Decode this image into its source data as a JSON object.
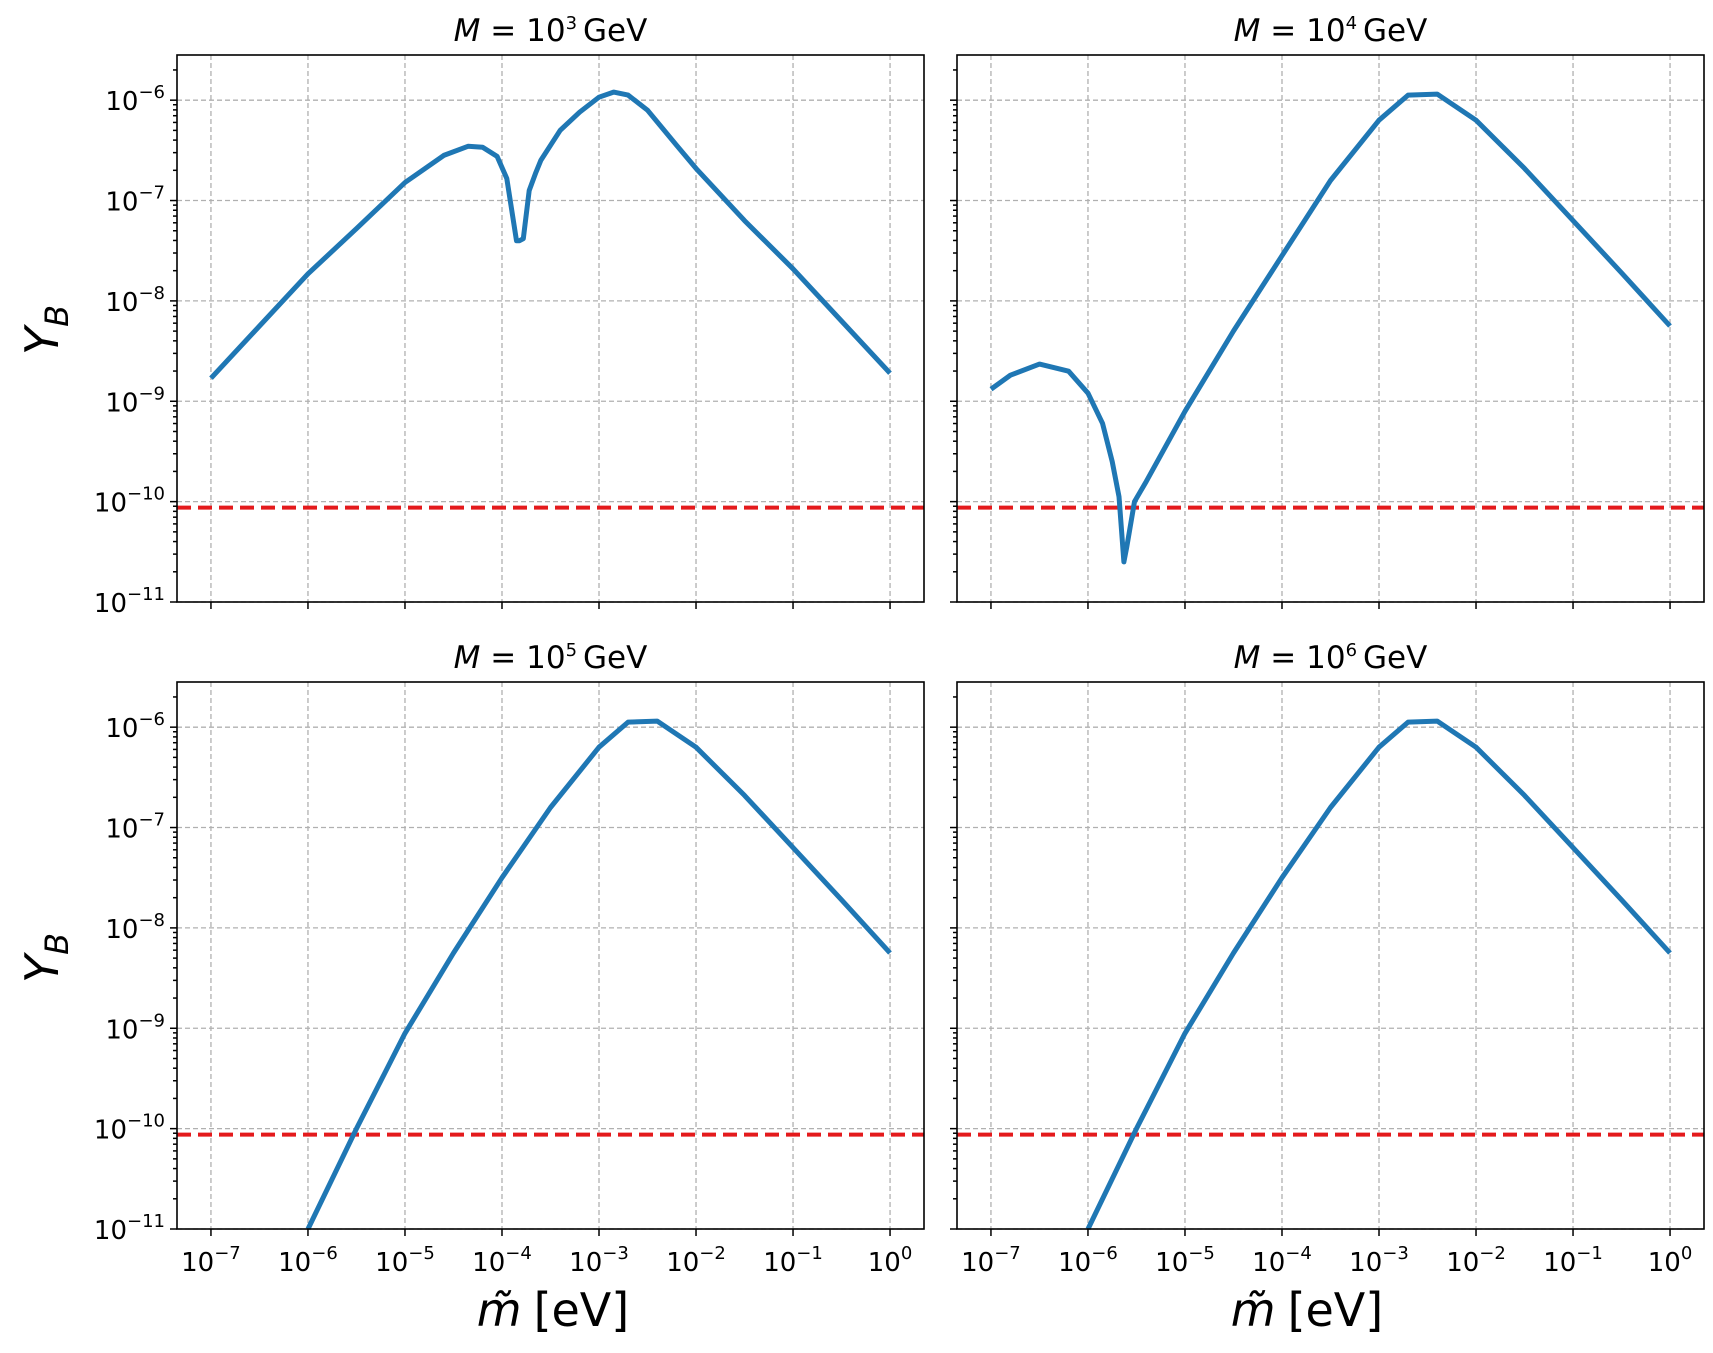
{
  "chart_data": [
    {
      "type": "line",
      "title": "M = 10^3 GeV",
      "title_prefix": "M",
      "title_exp": "3",
      "ylabel": "Y_B",
      "xlabel": "m̃ [eV]",
      "xscale": "log",
      "yscale": "log",
      "xlim_exp": [
        -7.35,
        0.35
      ],
      "ylim_exp": [
        -11,
        -5.55
      ],
      "x_ticks_exp": [
        -7,
        -6,
        -5,
        -4,
        -3,
        -2,
        -1,
        0
      ],
      "y_ticks_exp": [
        -11,
        -10,
        -9,
        -8,
        -7,
        -6
      ],
      "reference_line_exp": -10.06,
      "series": [
        {
          "name": "Y_B",
          "color": "#1f77b4",
          "x_exp": [
            -7.0,
            -6.5,
            -6.0,
            -5.5,
            -5.0,
            -4.6,
            -4.35,
            -4.2,
            -4.05,
            -3.95,
            -3.85,
            -3.82,
            -3.78,
            -3.72,
            -3.65,
            -3.6,
            -3.5,
            -3.4,
            -3.2,
            -3.0,
            -2.85,
            -2.7,
            -2.5,
            -2.2,
            -2.0,
            -1.5,
            -1.0,
            -0.5,
            0.0
          ],
          "y_exp": [
            -8.77,
            -8.25,
            -7.73,
            -7.28,
            -6.82,
            -6.55,
            -6.46,
            -6.47,
            -6.56,
            -6.78,
            -7.4,
            -7.4,
            -7.38,
            -6.9,
            -6.72,
            -6.6,
            -6.45,
            -6.3,
            -6.12,
            -5.97,
            -5.92,
            -5.95,
            -6.1,
            -6.45,
            -6.68,
            -7.2,
            -7.68,
            -8.2,
            -8.72
          ]
        }
      ]
    },
    {
      "type": "line",
      "title": "M = 10^4 GeV",
      "title_prefix": "M",
      "title_exp": "4",
      "ylabel": "Y_B",
      "xlabel": "m̃ [eV]",
      "xscale": "log",
      "yscale": "log",
      "xlim_exp": [
        -7.35,
        0.35
      ],
      "ylim_exp": [
        -11,
        -5.55
      ],
      "x_ticks_exp": [
        -7,
        -6,
        -5,
        -4,
        -3,
        -2,
        -1,
        0
      ],
      "y_ticks_exp": [
        -11,
        -10,
        -9,
        -8,
        -7,
        -6
      ],
      "reference_line_exp": -10.06,
      "series": [
        {
          "name": "Y_B",
          "color": "#1f77b4",
          "x_exp": [
            -7.0,
            -6.8,
            -6.5,
            -6.2,
            -6.0,
            -5.85,
            -5.75,
            -5.68,
            -5.63,
            -5.6,
            -5.52,
            -5.4,
            -5.2,
            -5.0,
            -4.5,
            -4.0,
            -3.5,
            -3.0,
            -2.7,
            -2.4,
            -2.0,
            -1.5,
            -1.0,
            -0.5,
            0.0
          ],
          "y_exp": [
            -8.88,
            -8.74,
            -8.63,
            -8.7,
            -8.92,
            -9.22,
            -9.6,
            -9.95,
            -10.6,
            -10.45,
            -10.0,
            -9.8,
            -9.45,
            -9.1,
            -8.3,
            -7.55,
            -6.8,
            -6.2,
            -5.95,
            -5.94,
            -6.2,
            -6.68,
            -7.2,
            -7.72,
            -8.25
          ]
        }
      ]
    },
    {
      "type": "line",
      "title": "M = 10^5 GeV",
      "title_prefix": "M",
      "title_exp": "5",
      "ylabel": "Y_B",
      "xlabel": "m̃ [eV]",
      "xscale": "log",
      "yscale": "log",
      "xlim_exp": [
        -7.35,
        0.35
      ],
      "ylim_exp": [
        -11,
        -5.55
      ],
      "x_ticks_exp": [
        -7,
        -6,
        -5,
        -4,
        -3,
        -2,
        -1,
        0
      ],
      "y_ticks_exp": [
        -11,
        -10,
        -9,
        -8,
        -7,
        -6
      ],
      "reference_line_exp": -10.06,
      "series": [
        {
          "name": "Y_B",
          "color": "#1f77b4",
          "x_exp": [
            -6.0,
            -5.5,
            -5.0,
            -4.5,
            -4.0,
            -3.5,
            -3.0,
            -2.7,
            -2.4,
            -2.0,
            -1.5,
            -1.0,
            -0.5,
            0.0
          ],
          "y_exp": [
            -11.0,
            -10.0,
            -9.05,
            -8.25,
            -7.5,
            -6.8,
            -6.2,
            -5.95,
            -5.94,
            -6.2,
            -6.68,
            -7.2,
            -7.72,
            -8.25
          ]
        }
      ]
    },
    {
      "type": "line",
      "title": "M = 10^6 GeV",
      "title_prefix": "M",
      "title_exp": "6",
      "ylabel": "Y_B",
      "xlabel": "m̃ [eV]",
      "xscale": "log",
      "yscale": "log",
      "xlim_exp": [
        -7.35,
        0.35
      ],
      "ylim_exp": [
        -11,
        -5.55
      ],
      "x_ticks_exp": [
        -7,
        -6,
        -5,
        -4,
        -3,
        -2,
        -1,
        0
      ],
      "y_ticks_exp": [
        -11,
        -10,
        -9,
        -8,
        -7,
        -6
      ],
      "reference_line_exp": -10.06,
      "series": [
        {
          "name": "Y_B",
          "color": "#1f77b4",
          "x_exp": [
            -6.0,
            -5.5,
            -5.0,
            -4.5,
            -4.0,
            -3.5,
            -3.0,
            -2.7,
            -2.4,
            -2.0,
            -1.5,
            -1.0,
            -0.5,
            0.0
          ],
          "y_exp": [
            -11.0,
            -10.0,
            -9.05,
            -8.25,
            -7.5,
            -6.8,
            -6.2,
            -5.95,
            -5.94,
            -6.2,
            -6.68,
            -7.2,
            -7.72,
            -8.25
          ]
        }
      ]
    }
  ],
  "labels": {
    "title_unit": "GeV",
    "tick_base": "10",
    "ylabel_main": "Y",
    "ylabel_sub": "B",
    "xlabel_symbol": "m̃",
    "xlabel_unit": "[eV]"
  },
  "colors": {
    "curve": "#1f77b4",
    "reference": "#e41a1c",
    "grid": "#b0b0b0"
  }
}
